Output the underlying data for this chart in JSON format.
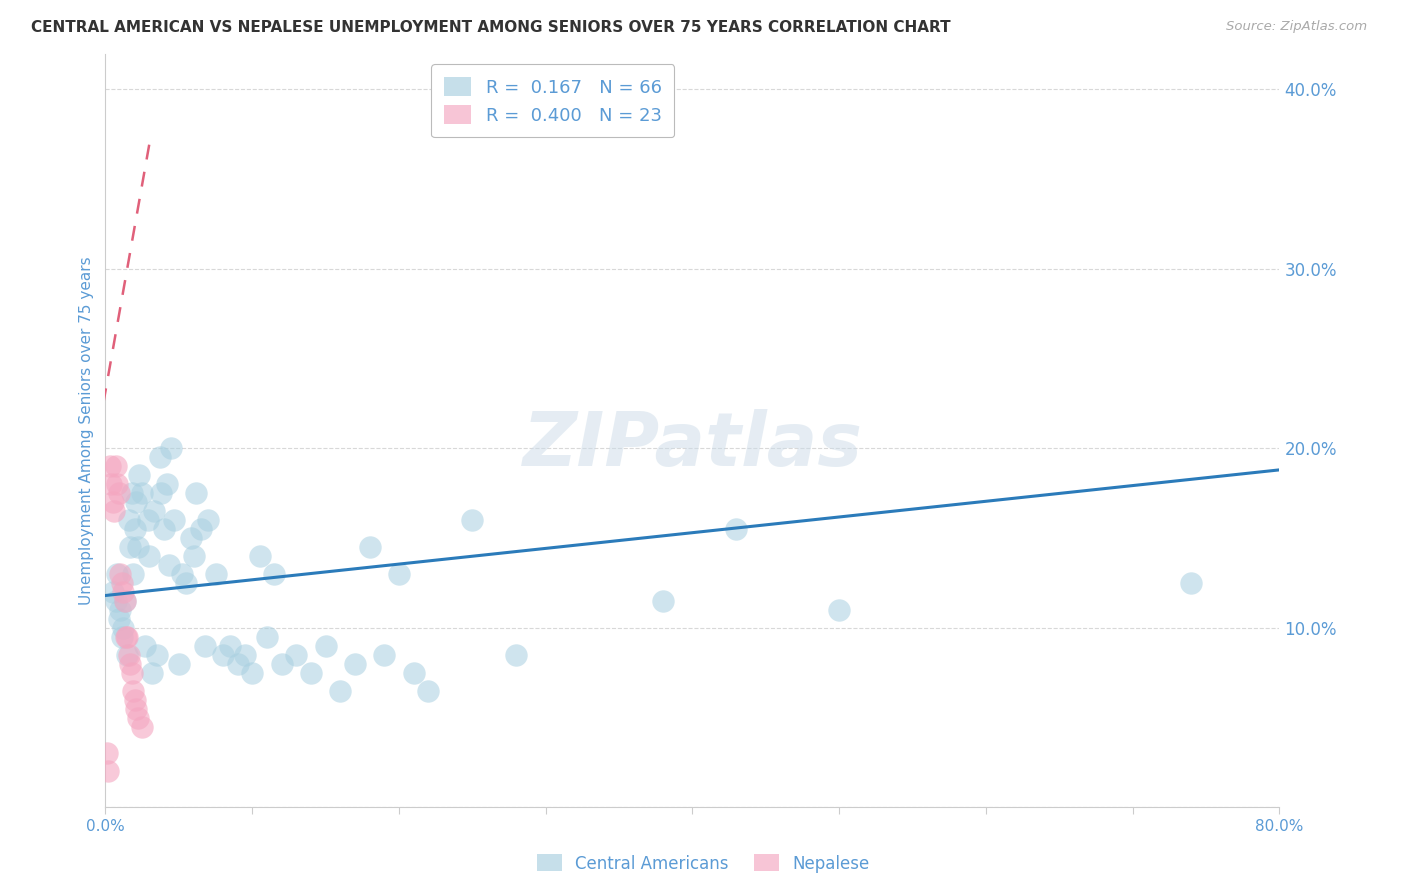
{
  "title": "CENTRAL AMERICAN VS NEPALESE UNEMPLOYMENT AMONG SENIORS OVER 75 YEARS CORRELATION CHART",
  "source": "Source: ZipAtlas.com",
  "ylabel": "Unemployment Among Seniors over 75 years",
  "xlim": [
    0.0,
    0.8
  ],
  "ylim": [
    0.0,
    0.42
  ],
  "xticks": [
    0.0,
    0.1,
    0.2,
    0.3,
    0.4,
    0.5,
    0.6,
    0.7,
    0.8
  ],
  "xticklabels": [
    "0.0%",
    "",
    "",
    "",
    "",
    "",
    "",
    "",
    "80.0%"
  ],
  "yticks_right": [
    0.0,
    0.1,
    0.2,
    0.3,
    0.4
  ],
  "yticklabels_right": [
    "",
    "10.0%",
    "20.0%",
    "30.0%",
    "40.0%"
  ],
  "blue_color": "#a8cfe0",
  "blue_line_color": "#2b7bba",
  "pink_color": "#f4a6c0",
  "pink_line_color": "#e0607a",
  "legend_blue_R": "0.167",
  "legend_blue_N": "66",
  "legend_pink_R": "0.400",
  "legend_pink_N": "23",
  "label_central": "Central Americans",
  "label_nepalese": "Nepalese",
  "watermark": "ZIPatlas",
  "blue_scatter_x": [
    0.005,
    0.007,
    0.008,
    0.009,
    0.01,
    0.011,
    0.012,
    0.013,
    0.015,
    0.016,
    0.017,
    0.018,
    0.019,
    0.02,
    0.021,
    0.022,
    0.023,
    0.025,
    0.027,
    0.029,
    0.03,
    0.032,
    0.033,
    0.035,
    0.037,
    0.038,
    0.04,
    0.042,
    0.043,
    0.045,
    0.047,
    0.05,
    0.052,
    0.055,
    0.058,
    0.06,
    0.062,
    0.065,
    0.068,
    0.07,
    0.075,
    0.08,
    0.085,
    0.09,
    0.095,
    0.1,
    0.105,
    0.11,
    0.115,
    0.12,
    0.13,
    0.14,
    0.15,
    0.16,
    0.17,
    0.18,
    0.19,
    0.2,
    0.21,
    0.22,
    0.25,
    0.28,
    0.38,
    0.43,
    0.5,
    0.74
  ],
  "blue_scatter_y": [
    0.12,
    0.115,
    0.13,
    0.105,
    0.11,
    0.095,
    0.1,
    0.115,
    0.085,
    0.16,
    0.145,
    0.175,
    0.13,
    0.155,
    0.17,
    0.145,
    0.185,
    0.175,
    0.09,
    0.16,
    0.14,
    0.075,
    0.165,
    0.085,
    0.195,
    0.175,
    0.155,
    0.18,
    0.135,
    0.2,
    0.16,
    0.08,
    0.13,
    0.125,
    0.15,
    0.14,
    0.175,
    0.155,
    0.09,
    0.16,
    0.13,
    0.085,
    0.09,
    0.08,
    0.085,
    0.075,
    0.14,
    0.095,
    0.13,
    0.08,
    0.085,
    0.075,
    0.09,
    0.065,
    0.08,
    0.145,
    0.085,
    0.13,
    0.075,
    0.065,
    0.16,
    0.085,
    0.115,
    0.155,
    0.11,
    0.125
  ],
  "pink_scatter_x": [
    0.001,
    0.002,
    0.003,
    0.004,
    0.005,
    0.006,
    0.007,
    0.008,
    0.009,
    0.01,
    0.011,
    0.012,
    0.013,
    0.014,
    0.015,
    0.016,
    0.017,
    0.018,
    0.019,
    0.02,
    0.021,
    0.022,
    0.025
  ],
  "pink_scatter_y": [
    0.03,
    0.02,
    0.19,
    0.18,
    0.17,
    0.165,
    0.19,
    0.18,
    0.175,
    0.13,
    0.125,
    0.12,
    0.115,
    0.095,
    0.095,
    0.085,
    0.08,
    0.075,
    0.065,
    0.06,
    0.055,
    0.05,
    0.045
  ],
  "blue_trendline_x": [
    0.0,
    0.8
  ],
  "blue_trendline_y": [
    0.118,
    0.188
  ],
  "pink_trendline_x": [
    -0.008,
    0.03
  ],
  "pink_trendline_y": [
    0.195,
    0.37
  ],
  "grid_color": "#d8d8d8",
  "axis_color": "#5b9bd5",
  "bg_color": "#ffffff"
}
